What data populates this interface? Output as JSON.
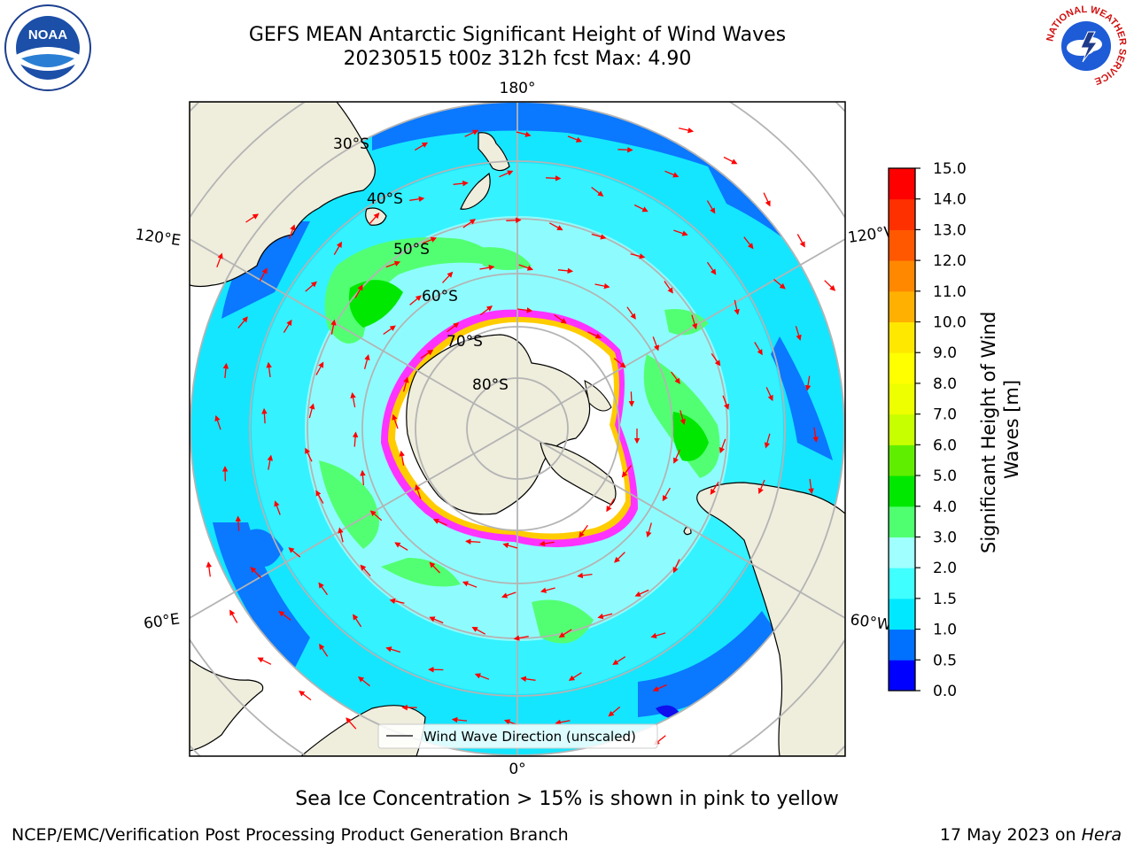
{
  "title": {
    "line1": "GEFS MEAN Antarctic Significant Height of Wind Waves",
    "line2": "20230515 t00z 312h fcst   Max: 4.90"
  },
  "map": {
    "projection": "south-polar-stereographic",
    "longitude_labels": {
      "top": "180°",
      "bottom": "0°",
      "upper_left": "120°E",
      "lower_left": "60°E",
      "upper_right": "120°W",
      "lower_right": "60°W"
    },
    "latitude_labels": [
      "30°S",
      "40°S",
      "50°S",
      "60°S",
      "70°S",
      "80°S"
    ],
    "legend_label": "Wind Wave Direction (unscaled)",
    "arrow_color": "#ff0000",
    "land_color": "#efeddc",
    "sea_ice_colors": [
      "#ff33ff",
      "#ffcc00"
    ]
  },
  "colorbar": {
    "label": "Significant Height of Wind Waves [m]",
    "label_line1": "Significant Height of Wind",
    "label_line2": "Waves [m]",
    "ticks": [
      "0.0",
      "0.5",
      "1.0",
      "1.5",
      "2.0",
      "3.0",
      "4.0",
      "5.0",
      "6.0",
      "7.0",
      "8.0",
      "9.0",
      "10.0",
      "11.0",
      "12.0",
      "13.0",
      "14.0",
      "15.0"
    ],
    "colors": [
      "#0000ff",
      "#0070ff",
      "#00e8ff",
      "#40ffff",
      "#a0ffff",
      "#50ff70",
      "#00e800",
      "#60ee00",
      "#c8ff00",
      "#eeff00",
      "#ffff00",
      "#ffe800",
      "#ffb000",
      "#ff8800",
      "#ff5800",
      "#ff3000",
      "#ff0000"
    ]
  },
  "note": "Sea Ice Concentration > 15% is shown in pink to yellow",
  "footer": {
    "left": "NCEP/EMC/Verification Post Processing Product Generation Branch",
    "right_date": "17 May 2023 on ",
    "right_host": "Hera"
  },
  "logos": {
    "noaa_text": "NOAA",
    "nws_ring_text": "NATIONAL WEATHER SERVICE"
  }
}
